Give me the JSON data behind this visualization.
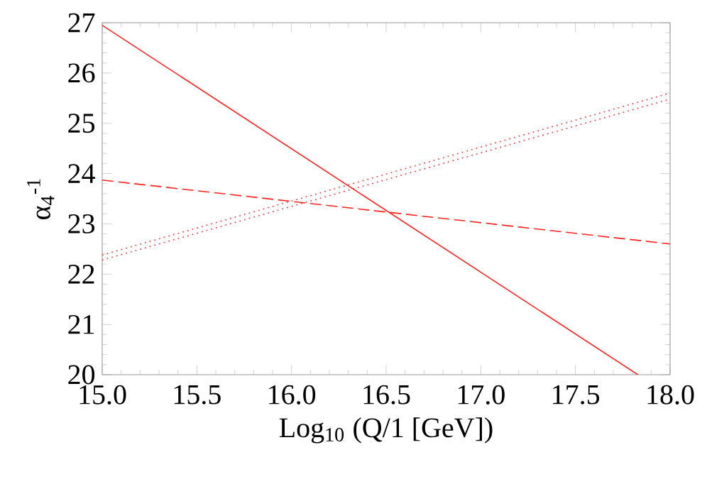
{
  "chart_data": {
    "type": "line",
    "xlabel": "Log$_{10}$ (Q/1 [GeV])",
    "ylabel": "α$_{4}$$^{-1}$",
    "xlim": [
      15,
      18
    ],
    "ylim": [
      20,
      27
    ],
    "xticks": [
      {
        "value": 15,
        "label": "15.0"
      },
      {
        "value": 15.5,
        "label": "15.5"
      },
      {
        "value": 16,
        "label": "16.0"
      },
      {
        "value": 16.5,
        "label": "16.5"
      },
      {
        "value": 17,
        "label": "17.0"
      },
      {
        "value": 17.5,
        "label": "17.5"
      },
      {
        "value": 18,
        "label": "18.0"
      }
    ],
    "yticks": [
      20,
      21,
      22,
      23,
      24,
      25,
      26,
      27
    ],
    "marker": "none",
    "series": [
      {
        "color": "#ff2020",
        "line_style": "solid",
        "x": [
          15,
          17.83
        ],
        "values": [
          26.95,
          20
        ]
      },
      {
        "color": "#ff2020",
        "line_style": "dashed",
        "x": [
          15,
          18
        ],
        "values": [
          23.87,
          22.6
        ]
      },
      {
        "color": "#ff2020",
        "line_style": "dotted",
        "x": [
          15,
          18
        ],
        "values": [
          22.38,
          25.6
        ]
      },
      {
        "color": "#ff2020",
        "line_style": "dotted",
        "x": [
          15,
          18
        ],
        "values": [
          22.28,
          25.48
        ]
      }
    ]
  }
}
